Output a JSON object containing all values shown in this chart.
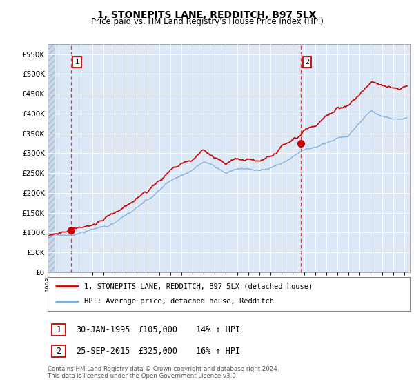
{
  "title": "1, STONEPITS LANE, REDDITCH, B97 5LX",
  "subtitle": "Price paid vs. HM Land Registry's House Price Index (HPI)",
  "ylim": [
    0,
    575000
  ],
  "yticks": [
    0,
    50000,
    100000,
    150000,
    200000,
    250000,
    300000,
    350000,
    400000,
    450000,
    500000,
    550000
  ],
  "xlim_start": 1993.0,
  "xlim_end": 2025.5,
  "xticks": [
    1993,
    1994,
    1995,
    1996,
    1997,
    1998,
    1999,
    2000,
    2001,
    2002,
    2003,
    2004,
    2005,
    2006,
    2007,
    2008,
    2009,
    2010,
    2011,
    2012,
    2013,
    2014,
    2015,
    2016,
    2017,
    2018,
    2019,
    2020,
    2021,
    2022,
    2023,
    2024,
    2025
  ],
  "sale1_x": 1995.08,
  "sale1_y": 105000,
  "sale2_x": 2015.73,
  "sale2_y": 325000,
  "vline1_x": 1995.08,
  "vline2_x": 2015.73,
  "sale_color": "#cc0000",
  "hpi_color": "#7aabdb",
  "vline_color": "#cc0000",
  "legend_label1": "1, STONEPITS LANE, REDDITCH, B97 5LX (detached house)",
  "legend_label2": "HPI: Average price, detached house, Redditch",
  "annotation1_label": "1",
  "annotation2_label": "2",
  "table_row1": [
    "1",
    "30-JAN-1995",
    "£105,000",
    "14% ↑ HPI"
  ],
  "table_row2": [
    "2",
    "25-SEP-2015",
    "£325,000",
    "16% ↑ HPI"
  ],
  "footnote": "Contains HM Land Registry data © Crown copyright and database right 2024.\nThis data is licensed under the Open Government Licence v3.0.",
  "background_color": "#ffffff",
  "plot_bg_color": "#dce8f5",
  "title_fontsize": 10,
  "subtitle_fontsize": 8.5
}
